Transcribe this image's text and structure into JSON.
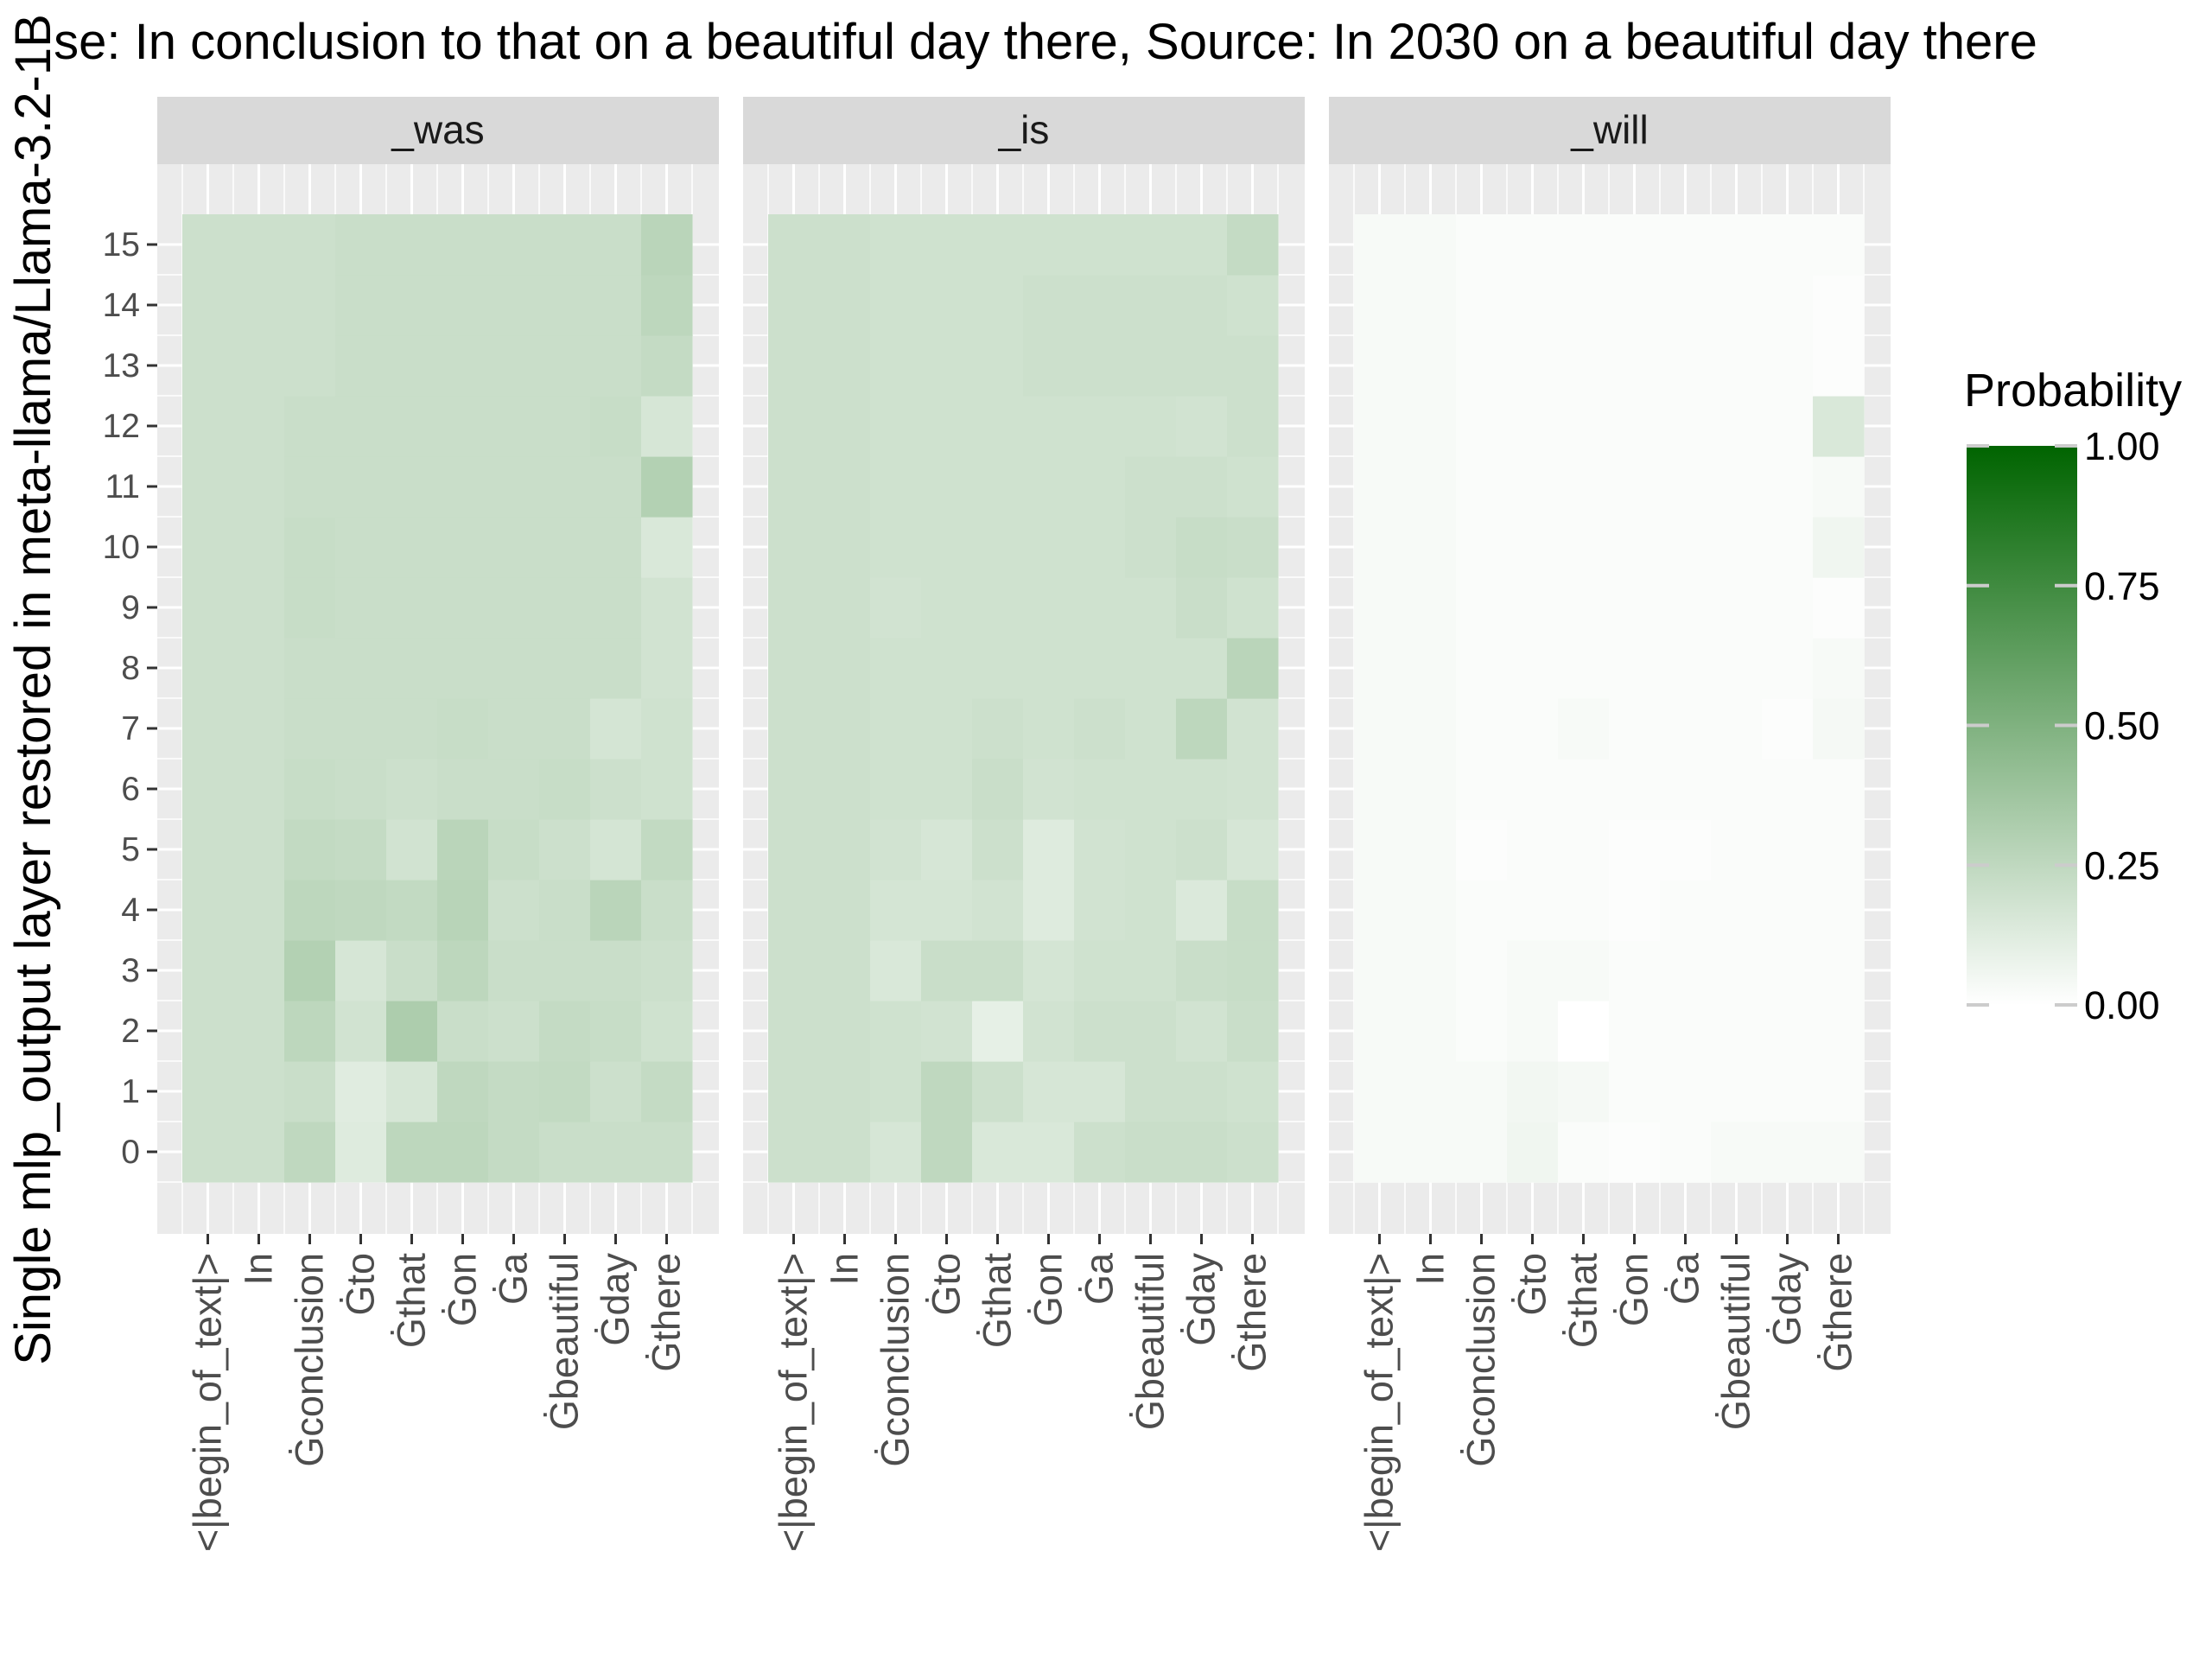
{
  "chart_data": {
    "type": "heatmap",
    "title": "se: In conclusion to that on a beautiful day there, Source: In 2030 on a beautiful day there",
    "ylabel": "Single mlp_output layer restored in meta-llama/Llama-3.2-1B",
    "x_tokens": [
      "<|begin_of_text|>",
      "In",
      "Ġconclusion",
      "Ġto",
      "Ġthat",
      "Ġon",
      "Ġa",
      "Ġbeautiful",
      "Ġday",
      "Ġthere"
    ],
    "y_layers": [
      0,
      1,
      2,
      3,
      4,
      5,
      6,
      7,
      8,
      9,
      10,
      11,
      12,
      13,
      14,
      15
    ],
    "legend": {
      "title": "Probability",
      "ticks": [
        "1.00",
        "0.75",
        "0.50",
        "0.25",
        "0.00"
      ],
      "tick_values": [
        1.0,
        0.75,
        0.5,
        0.25,
        0.0
      ],
      "color_low": "#ffffff",
      "color_high": "#006400",
      "position": "right"
    },
    "panel_background": "#ebebeb",
    "strip_background": "#d9d9d9",
    "grid": true,
    "panels": [
      {
        "name": "_was",
        "values": [
          [
            0.2,
            0.2,
            0.25,
            0.13,
            0.26,
            0.26,
            0.23,
            0.21,
            0.21,
            0.21
          ],
          [
            0.2,
            0.2,
            0.21,
            0.12,
            0.16,
            0.25,
            0.23,
            0.24,
            0.2,
            0.23
          ],
          [
            0.2,
            0.2,
            0.26,
            0.18,
            0.32,
            0.21,
            0.2,
            0.23,
            0.22,
            0.19
          ],
          [
            0.2,
            0.2,
            0.3,
            0.16,
            0.21,
            0.26,
            0.21,
            0.21,
            0.21,
            0.2
          ],
          [
            0.2,
            0.2,
            0.26,
            0.25,
            0.24,
            0.28,
            0.2,
            0.21,
            0.27,
            0.21
          ],
          [
            0.2,
            0.2,
            0.24,
            0.23,
            0.18,
            0.27,
            0.22,
            0.2,
            0.17,
            0.24
          ],
          [
            0.2,
            0.2,
            0.22,
            0.21,
            0.2,
            0.21,
            0.21,
            0.22,
            0.2,
            0.19
          ],
          [
            0.2,
            0.2,
            0.21,
            0.21,
            0.21,
            0.22,
            0.21,
            0.21,
            0.17,
            0.19
          ],
          [
            0.2,
            0.2,
            0.21,
            0.21,
            0.21,
            0.21,
            0.21,
            0.21,
            0.21,
            0.18
          ],
          [
            0.2,
            0.2,
            0.22,
            0.21,
            0.21,
            0.21,
            0.21,
            0.21,
            0.21,
            0.18
          ],
          [
            0.2,
            0.2,
            0.22,
            0.21,
            0.21,
            0.21,
            0.21,
            0.21,
            0.21,
            0.15
          ],
          [
            0.2,
            0.2,
            0.21,
            0.21,
            0.21,
            0.21,
            0.21,
            0.21,
            0.21,
            0.3
          ],
          [
            0.2,
            0.2,
            0.21,
            0.21,
            0.21,
            0.21,
            0.21,
            0.21,
            0.22,
            0.16
          ],
          [
            0.2,
            0.2,
            0.2,
            0.21,
            0.21,
            0.21,
            0.21,
            0.21,
            0.21,
            0.23
          ],
          [
            0.2,
            0.2,
            0.2,
            0.21,
            0.21,
            0.21,
            0.21,
            0.21,
            0.21,
            0.26
          ],
          [
            0.2,
            0.2,
            0.2,
            0.21,
            0.21,
            0.21,
            0.21,
            0.21,
            0.21,
            0.27
          ]
        ]
      },
      {
        "name": "_is",
        "values": [
          [
            0.2,
            0.2,
            0.16,
            0.25,
            0.15,
            0.15,
            0.2,
            0.21,
            0.21,
            0.2
          ],
          [
            0.2,
            0.2,
            0.19,
            0.25,
            0.2,
            0.16,
            0.16,
            0.2,
            0.2,
            0.19
          ],
          [
            0.2,
            0.2,
            0.19,
            0.18,
            0.1,
            0.18,
            0.2,
            0.2,
            0.18,
            0.21
          ],
          [
            0.2,
            0.2,
            0.15,
            0.21,
            0.21,
            0.17,
            0.19,
            0.19,
            0.21,
            0.22
          ],
          [
            0.2,
            0.2,
            0.17,
            0.17,
            0.18,
            0.13,
            0.18,
            0.19,
            0.14,
            0.22
          ],
          [
            0.2,
            0.2,
            0.18,
            0.16,
            0.2,
            0.13,
            0.18,
            0.19,
            0.2,
            0.16
          ],
          [
            0.2,
            0.2,
            0.19,
            0.19,
            0.21,
            0.18,
            0.19,
            0.19,
            0.19,
            0.18
          ],
          [
            0.2,
            0.2,
            0.19,
            0.19,
            0.2,
            0.19,
            0.2,
            0.19,
            0.26,
            0.18
          ],
          [
            0.2,
            0.2,
            0.19,
            0.19,
            0.19,
            0.19,
            0.19,
            0.19,
            0.19,
            0.27
          ],
          [
            0.2,
            0.2,
            0.18,
            0.19,
            0.19,
            0.19,
            0.19,
            0.19,
            0.21,
            0.19
          ],
          [
            0.2,
            0.2,
            0.19,
            0.19,
            0.19,
            0.19,
            0.19,
            0.2,
            0.22,
            0.21
          ],
          [
            0.2,
            0.2,
            0.19,
            0.19,
            0.19,
            0.19,
            0.19,
            0.2,
            0.2,
            0.19
          ],
          [
            0.2,
            0.2,
            0.19,
            0.19,
            0.19,
            0.19,
            0.19,
            0.19,
            0.18,
            0.2
          ],
          [
            0.2,
            0.2,
            0.19,
            0.19,
            0.19,
            0.2,
            0.2,
            0.2,
            0.2,
            0.2
          ],
          [
            0.2,
            0.2,
            0.19,
            0.19,
            0.19,
            0.2,
            0.2,
            0.2,
            0.2,
            0.19
          ],
          [
            0.2,
            0.2,
            0.19,
            0.19,
            0.19,
            0.19,
            0.19,
            0.19,
            0.19,
            0.23
          ]
        ]
      },
      {
        "name": "_will",
        "values": [
          [
            0.03,
            0.03,
            0.03,
            0.06,
            0.02,
            0.01,
            0.02,
            0.03,
            0.03,
            0.03
          ],
          [
            0.03,
            0.03,
            0.03,
            0.05,
            0.04,
            0.02,
            0.02,
            0.02,
            0.02,
            0.02
          ],
          [
            0.03,
            0.03,
            0.02,
            0.03,
            0.0,
            0.02,
            0.02,
            0.02,
            0.02,
            0.02
          ],
          [
            0.03,
            0.03,
            0.02,
            0.03,
            0.03,
            0.02,
            0.02,
            0.02,
            0.02,
            0.02
          ],
          [
            0.03,
            0.03,
            0.02,
            0.02,
            0.02,
            0.01,
            0.02,
            0.02,
            0.02,
            0.02
          ],
          [
            0.03,
            0.03,
            0.01,
            0.02,
            0.02,
            0.01,
            0.01,
            0.02,
            0.02,
            0.02
          ],
          [
            0.03,
            0.03,
            0.02,
            0.02,
            0.02,
            0.02,
            0.02,
            0.02,
            0.02,
            0.02
          ],
          [
            0.03,
            0.03,
            0.02,
            0.02,
            0.03,
            0.02,
            0.02,
            0.02,
            0.01,
            0.04
          ],
          [
            0.03,
            0.03,
            0.02,
            0.02,
            0.02,
            0.02,
            0.02,
            0.02,
            0.02,
            0.03
          ],
          [
            0.03,
            0.03,
            0.02,
            0.02,
            0.02,
            0.02,
            0.02,
            0.02,
            0.02,
            0.01
          ],
          [
            0.03,
            0.03,
            0.02,
            0.02,
            0.02,
            0.02,
            0.02,
            0.02,
            0.02,
            0.06
          ],
          [
            0.03,
            0.03,
            0.02,
            0.02,
            0.02,
            0.02,
            0.02,
            0.02,
            0.02,
            0.03
          ],
          [
            0.03,
            0.03,
            0.02,
            0.02,
            0.02,
            0.02,
            0.02,
            0.02,
            0.02,
            0.15
          ],
          [
            0.03,
            0.03,
            0.02,
            0.02,
            0.02,
            0.02,
            0.02,
            0.02,
            0.02,
            0.01
          ],
          [
            0.03,
            0.03,
            0.02,
            0.02,
            0.02,
            0.02,
            0.02,
            0.02,
            0.02,
            0.01
          ],
          [
            0.03,
            0.03,
            0.02,
            0.02,
            0.02,
            0.02,
            0.02,
            0.02,
            0.02,
            0.02
          ]
        ]
      }
    ]
  }
}
